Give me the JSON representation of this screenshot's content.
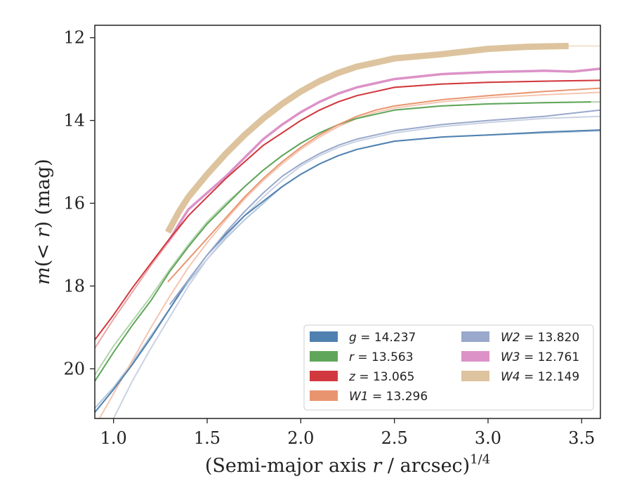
{
  "chart_data": {
    "type": "line",
    "xlabel": "(Semi-major axis r / arcsec)",
    "xlabel_parts": {
      "prefix": "(Semi-major axis ",
      "var": "r",
      "suffix": " / arcsec)",
      "exponent": "1/4"
    },
    "ylabel": "m(< r) (mag)",
    "ylabel_parts": {
      "m": "m",
      "open": "(",
      "lt": "< ",
      "r": "r",
      "close": ")",
      "unit": " (mag)"
    },
    "xlim": [
      0.9,
      3.6
    ],
    "ylim": [
      21.2,
      11.7
    ],
    "y_inverted": true,
    "xticks": [
      1.0,
      1.5,
      2.0,
      2.5,
      3.0,
      3.5
    ],
    "xtick_labels": [
      "1.0",
      "1.5",
      "2.0",
      "2.5",
      "3.0",
      "3.5"
    ],
    "yticks": [
      12,
      14,
      16,
      18,
      20
    ],
    "ytick_labels": [
      "12",
      "14",
      "16",
      "18",
      "20"
    ],
    "grid": false,
    "legend_position": "lower-right",
    "series": [
      {
        "name": "g = 14.237",
        "legend_var": "g",
        "legend_value": "14.237",
        "color": "#4f81b0",
        "light_color": "#b3c6da",
        "width": 2,
        "light": [
          [
            0.9,
            20.95
          ],
          [
            1.0,
            20.45
          ],
          [
            1.1,
            19.85
          ],
          [
            1.2,
            19.2
          ],
          [
            1.3,
            18.55
          ],
          [
            1.4,
            17.9
          ],
          [
            1.5,
            17.35
          ],
          [
            1.6,
            16.85
          ],
          [
            1.7,
            16.4
          ],
          [
            1.8,
            16.0
          ],
          [
            1.9,
            15.6
          ],
          [
            2.0,
            15.3
          ],
          [
            2.1,
            15.05
          ],
          [
            2.2,
            14.85
          ],
          [
            2.3,
            14.7
          ],
          [
            2.4,
            14.6
          ],
          [
            2.5,
            14.5
          ],
          [
            2.75,
            14.4
          ],
          [
            3.0,
            14.35
          ],
          [
            3.3,
            14.3
          ],
          [
            3.6,
            14.25
          ]
        ],
        "main": [
          [
            0.9,
            21.05
          ],
          [
            1.0,
            20.5
          ],
          [
            1.1,
            19.9
          ],
          [
            1.2,
            19.25
          ],
          [
            1.3,
            18.55
          ],
          [
            1.4,
            17.85
          ],
          [
            1.5,
            17.25
          ],
          [
            1.6,
            16.75
          ],
          [
            1.7,
            16.3
          ],
          [
            1.8,
            15.95
          ],
          [
            1.9,
            15.6
          ],
          [
            2.0,
            15.3
          ],
          [
            2.1,
            15.05
          ],
          [
            2.2,
            14.85
          ],
          [
            2.3,
            14.7
          ],
          [
            2.4,
            14.6
          ],
          [
            2.5,
            14.5
          ],
          [
            2.75,
            14.4
          ],
          [
            3.0,
            14.35
          ],
          [
            3.3,
            14.28
          ],
          [
            3.6,
            14.23
          ]
        ]
      },
      {
        "name": "r = 13.563",
        "legend_var": "r",
        "legend_value": "13.563",
        "color": "#5fa65a",
        "light_color": "#b2d4ad",
        "width": 2,
        "light": [
          [
            0.9,
            20.15
          ],
          [
            1.0,
            19.45
          ],
          [
            1.1,
            18.85
          ],
          [
            1.2,
            18.25
          ],
          [
            1.3,
            17.6
          ],
          [
            1.4,
            17.0
          ],
          [
            1.5,
            16.45
          ],
          [
            1.6,
            16.0
          ],
          [
            1.7,
            15.6
          ],
          [
            1.8,
            15.2
          ],
          [
            1.9,
            14.85
          ],
          [
            2.0,
            14.55
          ],
          [
            2.1,
            14.3
          ],
          [
            2.2,
            14.1
          ],
          [
            2.3,
            13.95
          ],
          [
            2.4,
            13.85
          ],
          [
            2.5,
            13.75
          ],
          [
            2.75,
            13.65
          ],
          [
            3.0,
            13.6
          ],
          [
            3.3,
            13.57
          ],
          [
            3.6,
            13.55
          ]
        ],
        "main": [
          [
            0.9,
            20.3
          ],
          [
            1.0,
            19.6
          ],
          [
            1.1,
            18.95
          ],
          [
            1.2,
            18.35
          ],
          [
            1.3,
            17.65
          ],
          [
            1.4,
            17.05
          ],
          [
            1.5,
            16.5
          ],
          [
            1.6,
            16.05
          ],
          [
            1.7,
            15.6
          ],
          [
            1.8,
            15.2
          ],
          [
            1.9,
            14.85
          ],
          [
            2.0,
            14.55
          ],
          [
            2.1,
            14.3
          ],
          [
            2.2,
            14.1
          ],
          [
            2.3,
            13.95
          ],
          [
            2.4,
            13.85
          ],
          [
            2.5,
            13.75
          ],
          [
            2.75,
            13.65
          ],
          [
            3.0,
            13.6
          ],
          [
            3.3,
            13.57
          ],
          [
            3.55,
            13.55
          ]
        ]
      },
      {
        "name": "z = 13.065",
        "legend_var": "z",
        "legend_value": "13.065",
        "color": "#d1393e",
        "light_color": "#eaa6a8",
        "width": 2,
        "light": [
          [
            0.9,
            19.5
          ],
          [
            1.0,
            18.8
          ],
          [
            1.1,
            18.15
          ],
          [
            1.2,
            17.5
          ],
          [
            1.3,
            16.9
          ],
          [
            1.4,
            16.3
          ],
          [
            1.5,
            15.85
          ],
          [
            1.6,
            15.4
          ],
          [
            1.7,
            15.0
          ],
          [
            1.8,
            14.6
          ],
          [
            1.9,
            14.3
          ],
          [
            2.0,
            14.0
          ],
          [
            2.1,
            13.75
          ],
          [
            2.2,
            13.55
          ],
          [
            2.3,
            13.4
          ],
          [
            2.4,
            13.3
          ],
          [
            2.5,
            13.2
          ],
          [
            2.75,
            13.12
          ],
          [
            3.0,
            13.08
          ],
          [
            3.3,
            13.05
          ],
          [
            3.6,
            13.03
          ]
        ],
        "main": [
          [
            0.9,
            19.3
          ],
          [
            1.0,
            18.7
          ],
          [
            1.1,
            18.05
          ],
          [
            1.2,
            17.45
          ],
          [
            1.3,
            16.85
          ],
          [
            1.4,
            16.3
          ],
          [
            1.5,
            15.85
          ],
          [
            1.6,
            15.4
          ],
          [
            1.7,
            15.0
          ],
          [
            1.8,
            14.6
          ],
          [
            1.9,
            14.3
          ],
          [
            2.0,
            14.0
          ],
          [
            2.1,
            13.75
          ],
          [
            2.2,
            13.55
          ],
          [
            2.3,
            13.4
          ],
          [
            2.4,
            13.3
          ],
          [
            2.5,
            13.2
          ],
          [
            2.75,
            13.12
          ],
          [
            3.0,
            13.08
          ],
          [
            3.3,
            13.05
          ],
          [
            3.6,
            13.03
          ]
        ]
      },
      {
        "name": "W1 = 13.296",
        "legend_var": "W1",
        "legend_value": "13.296",
        "color": "#e8956f",
        "light_color": "#f4c6b1",
        "width": 2,
        "light": [
          [
            0.9,
            21.4
          ],
          [
            1.0,
            20.6
          ],
          [
            1.1,
            19.8
          ],
          [
            1.2,
            19.0
          ],
          [
            1.3,
            18.25
          ],
          [
            1.4,
            17.55
          ],
          [
            1.5,
            16.95
          ],
          [
            1.6,
            16.4
          ],
          [
            1.7,
            15.9
          ],
          [
            1.8,
            15.45
          ],
          [
            1.9,
            15.05
          ],
          [
            2.0,
            14.7
          ],
          [
            2.1,
            14.4
          ],
          [
            2.2,
            14.15
          ],
          [
            2.3,
            13.95
          ],
          [
            2.4,
            13.8
          ],
          [
            2.5,
            13.7
          ],
          [
            2.75,
            13.55
          ],
          [
            3.0,
            13.45
          ],
          [
            3.3,
            13.38
          ],
          [
            3.6,
            13.32
          ]
        ],
        "main": [
          [
            1.29,
            17.9
          ],
          [
            1.35,
            17.6
          ],
          [
            1.4,
            17.35
          ],
          [
            1.5,
            16.85
          ],
          [
            1.6,
            16.35
          ],
          [
            1.7,
            15.85
          ],
          [
            1.8,
            15.4
          ],
          [
            1.9,
            15.0
          ],
          [
            2.0,
            14.65
          ],
          [
            2.1,
            14.35
          ],
          [
            2.2,
            14.1
          ],
          [
            2.3,
            13.9
          ],
          [
            2.4,
            13.75
          ],
          [
            2.5,
            13.65
          ],
          [
            2.75,
            13.5
          ],
          [
            3.0,
            13.4
          ],
          [
            3.3,
            13.3
          ],
          [
            3.6,
            13.22
          ]
        ]
      },
      {
        "name": "W2 = 13.820",
        "legend_var": "W2",
        "legend_value": "13.820",
        "color": "#99a8cb",
        "light_color": "#c9d1e3",
        "width": 2,
        "light": [
          [
            1.0,
            21.2
          ],
          [
            1.1,
            20.3
          ],
          [
            1.2,
            19.5
          ],
          [
            1.3,
            18.75
          ],
          [
            1.4,
            18.0
          ],
          [
            1.5,
            17.35
          ],
          [
            1.6,
            16.8
          ],
          [
            1.7,
            16.3
          ],
          [
            1.8,
            15.85
          ],
          [
            1.9,
            15.45
          ],
          [
            2.0,
            15.1
          ],
          [
            2.1,
            14.85
          ],
          [
            2.2,
            14.65
          ],
          [
            2.3,
            14.5
          ],
          [
            2.4,
            14.4
          ],
          [
            2.5,
            14.3
          ],
          [
            2.75,
            14.15
          ],
          [
            3.0,
            14.05
          ],
          [
            3.3,
            13.95
          ],
          [
            3.6,
            13.9
          ]
        ],
        "main": [
          [
            1.3,
            18.45
          ],
          [
            1.4,
            17.85
          ],
          [
            1.5,
            17.25
          ],
          [
            1.6,
            16.7
          ],
          [
            1.7,
            16.2
          ],
          [
            1.8,
            15.75
          ],
          [
            1.9,
            15.35
          ],
          [
            2.0,
            15.05
          ],
          [
            2.1,
            14.8
          ],
          [
            2.2,
            14.6
          ],
          [
            2.3,
            14.45
          ],
          [
            2.4,
            14.35
          ],
          [
            2.5,
            14.25
          ],
          [
            2.75,
            14.1
          ],
          [
            3.0,
            14.0
          ],
          [
            3.3,
            13.9
          ],
          [
            3.6,
            13.75
          ]
        ]
      },
      {
        "name": "W3 = 12.761",
        "legend_var": "W3",
        "legend_value": "12.761",
        "color": "#dc92c7",
        "light_color": "#eec4e2",
        "width": 3.5,
        "light": [],
        "main": [
          [
            1.29,
            16.95
          ],
          [
            1.35,
            16.5
          ],
          [
            1.4,
            16.15
          ],
          [
            1.5,
            15.75
          ],
          [
            1.6,
            15.35
          ],
          [
            1.7,
            14.9
          ],
          [
            1.8,
            14.45
          ],
          [
            1.9,
            14.1
          ],
          [
            2.0,
            13.8
          ],
          [
            2.1,
            13.55
          ],
          [
            2.2,
            13.35
          ],
          [
            2.3,
            13.2
          ],
          [
            2.4,
            13.1
          ],
          [
            2.5,
            13.0
          ],
          [
            2.75,
            12.88
          ],
          [
            3.0,
            12.83
          ],
          [
            3.3,
            12.8
          ],
          [
            3.45,
            12.82
          ],
          [
            3.6,
            12.75
          ]
        ]
      },
      {
        "name": "W4 = 12.149",
        "legend_var": "W4",
        "legend_value": "12.149",
        "color": "#ddc49e",
        "light_color": "#efe2cc",
        "width": 9,
        "light": [
          [
            3.43,
            12.2
          ],
          [
            3.6,
            12.2
          ]
        ],
        "main": [
          [
            1.29,
            16.7
          ],
          [
            1.35,
            16.2
          ],
          [
            1.4,
            15.85
          ],
          [
            1.5,
            15.3
          ],
          [
            1.6,
            14.8
          ],
          [
            1.7,
            14.35
          ],
          [
            1.8,
            13.95
          ],
          [
            1.9,
            13.6
          ],
          [
            2.0,
            13.3
          ],
          [
            2.1,
            13.05
          ],
          [
            2.2,
            12.85
          ],
          [
            2.3,
            12.7
          ],
          [
            2.4,
            12.6
          ],
          [
            2.5,
            12.5
          ],
          [
            2.75,
            12.4
          ],
          [
            3.0,
            12.27
          ],
          [
            3.2,
            12.22
          ],
          [
            3.43,
            12.2
          ]
        ]
      }
    ]
  }
}
